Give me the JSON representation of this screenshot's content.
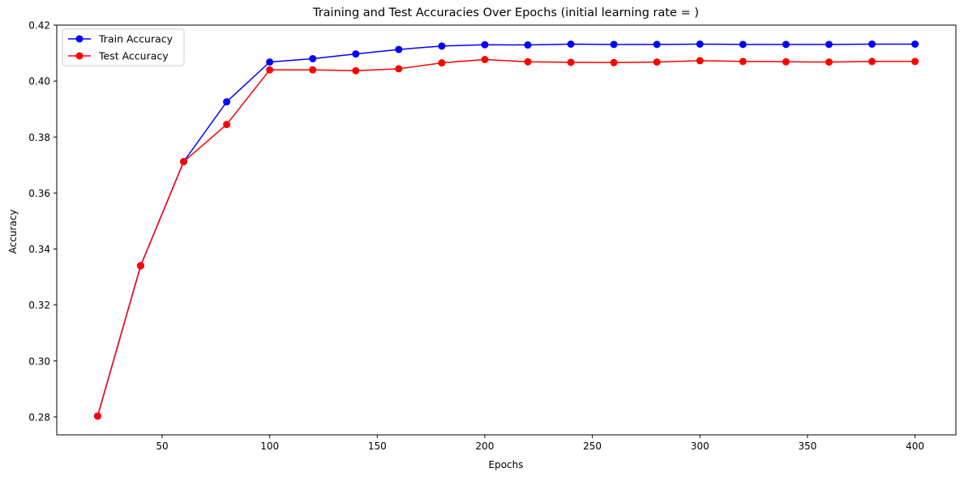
{
  "chart_data": {
    "type": "line",
    "title": "Training and Test Accuracies Over Epochs (initial learning rate = )",
    "xlabel": "Epochs",
    "ylabel": "Accuracy",
    "x": [
      20,
      40,
      60,
      80,
      100,
      120,
      140,
      160,
      180,
      200,
      220,
      240,
      260,
      280,
      300,
      320,
      340,
      360,
      380,
      400
    ],
    "xlim": [
      1,
      419
    ],
    "ylim": [
      0.2736,
      0.42
    ],
    "xticks": [
      50,
      100,
      150,
      200,
      250,
      300,
      350,
      400
    ],
    "xtick_labels": [
      "50",
      "100",
      "150",
      "200",
      "250",
      "300",
      "350",
      "400"
    ],
    "yticks": [
      0.28,
      0.3,
      0.32,
      0.34,
      0.36,
      0.38,
      0.4,
      0.42
    ],
    "ytick_labels": [
      "0.28",
      "0.30",
      "0.32",
      "0.34",
      "0.36",
      "0.38",
      "0.40",
      "0.42"
    ],
    "grid": false,
    "legend_position": "top-left",
    "series": [
      {
        "name": "Train Accuracy",
        "color": "#0000ff",
        "marker": "circle",
        "values": [
          0.2803,
          0.334,
          0.3712,
          0.3926,
          0.4068,
          0.408,
          0.4097,
          0.4113,
          0.4125,
          0.413,
          0.4129,
          0.4132,
          0.4131,
          0.4131,
          0.4132,
          0.4131,
          0.4131,
          0.4131,
          0.4132,
          0.4132
        ]
      },
      {
        "name": "Test Accuracy",
        "color": "#ff0000",
        "marker": "circle",
        "values": [
          0.2803,
          0.334,
          0.3712,
          0.3845,
          0.404,
          0.404,
          0.4037,
          0.4044,
          0.4065,
          0.4077,
          0.4069,
          0.4067,
          0.4066,
          0.4068,
          0.4073,
          0.407,
          0.4069,
          0.4068,
          0.407,
          0.407
        ]
      }
    ]
  }
}
